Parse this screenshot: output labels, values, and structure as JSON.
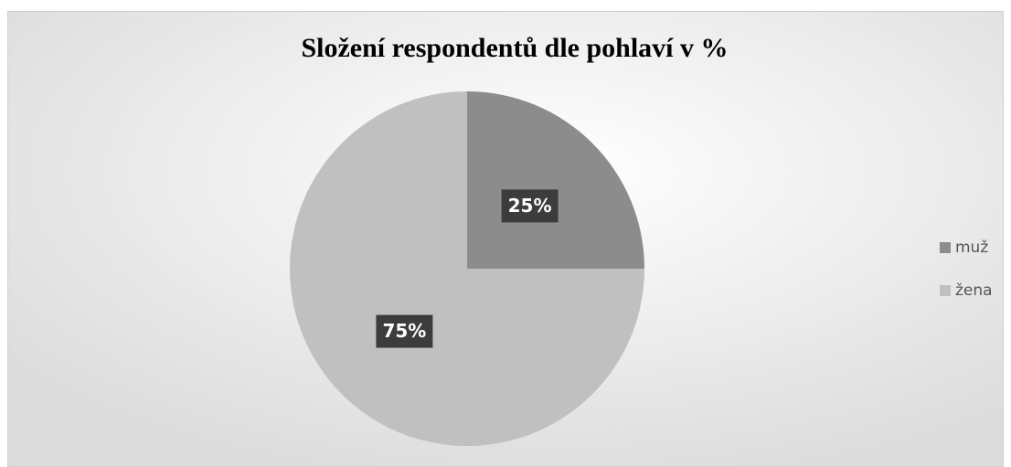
{
  "chart_data": {
    "type": "pie",
    "title": "Složení respondentů dle pohlaví v %",
    "categories": [
      "muž",
      "žena"
    ],
    "values": [
      25,
      75
    ],
    "value_labels": [
      "25%",
      "75%"
    ],
    "colors": [
      "#8c8c8c",
      "#c0c0c0"
    ],
    "legend": "right"
  }
}
